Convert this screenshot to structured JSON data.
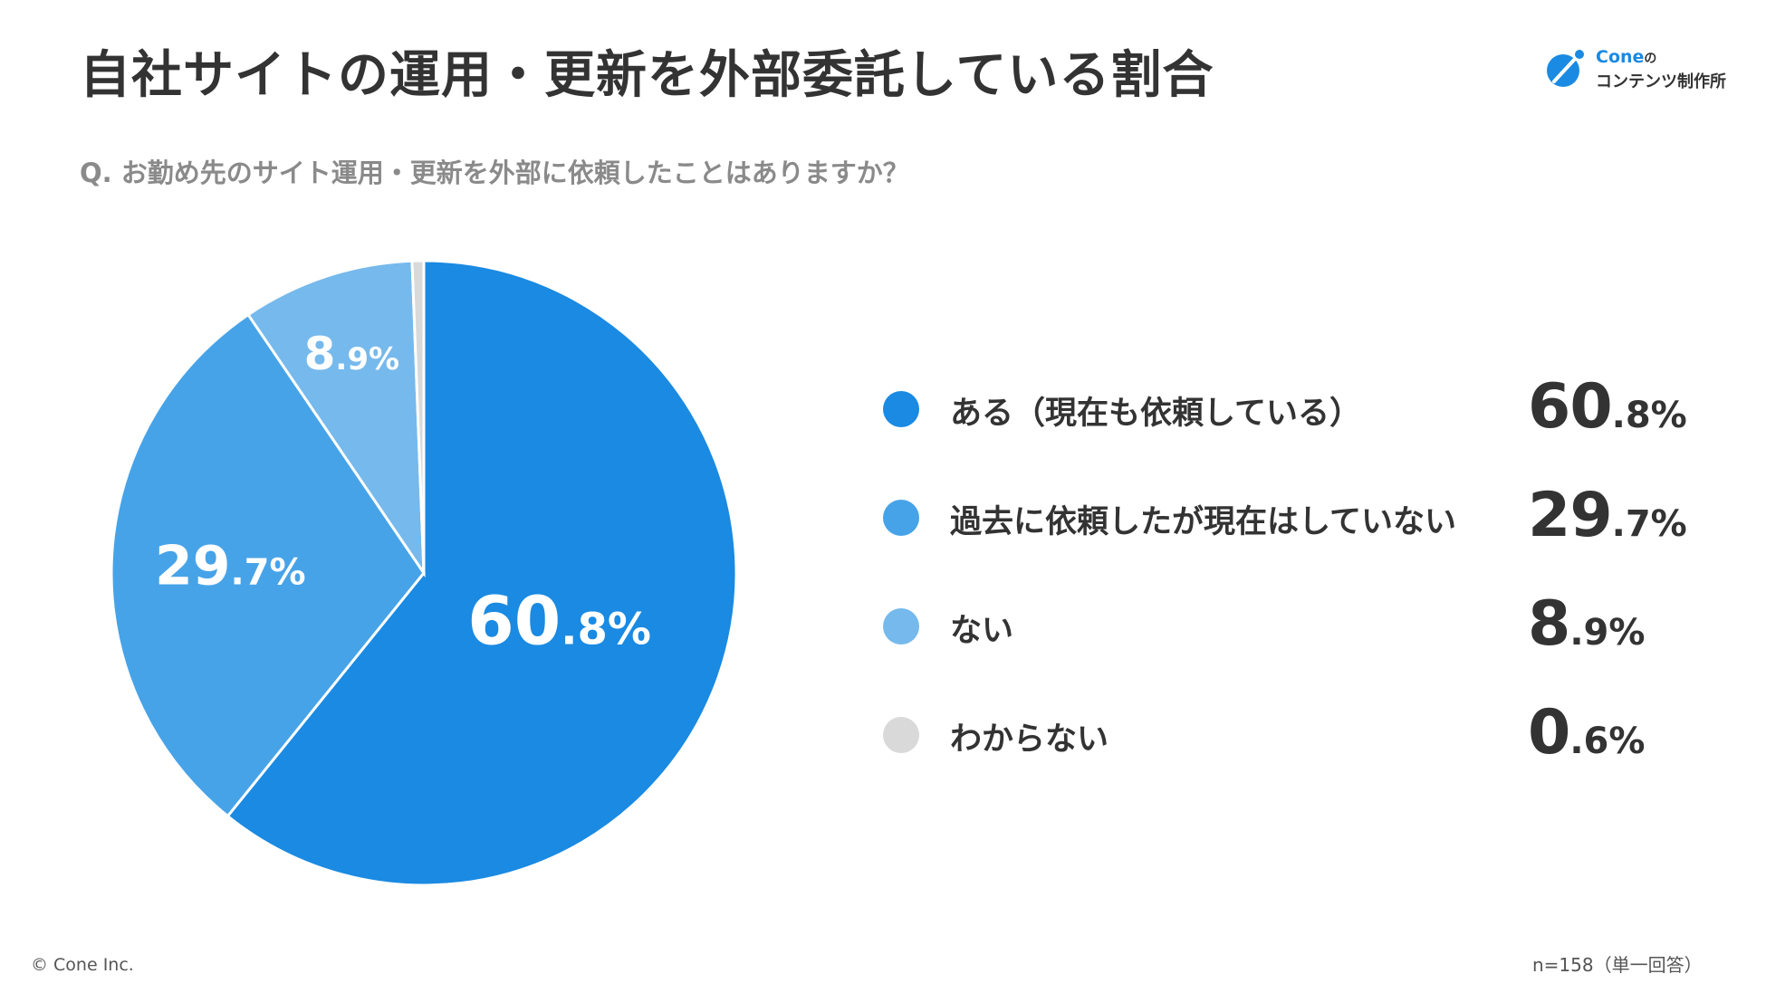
{
  "title": "自社サイトの運用・更新を外部委託している割合",
  "question": "Q. お勤め先のサイト運用・更新を外部に依頼したことはありますか？",
  "logo": {
    "brand": "Cone",
    "particle": "の",
    "subtitle": "コンテンツ制作所",
    "accent": "#1a8ae2"
  },
  "footer": {
    "copyright": "© Cone Inc.",
    "sample_note": "n=158（単一回答）"
  },
  "chart_data": {
    "type": "pie",
    "title": "",
    "categories": [
      "ある（現在も依頼している）",
      "過去に依頼したが現在はしていない",
      "ない",
      "わからない"
    ],
    "values": [
      60.8,
      29.7,
      8.9,
      0.6
    ],
    "colors": [
      "#1a8ae2",
      "#47a3e8",
      "#76b9ec",
      "#d9d9d9"
    ],
    "unit": "%",
    "slice_labels_shown": [
      "60.8%",
      "29.7%",
      "8.9%"
    ],
    "legend_position": "right",
    "legend": [
      {
        "label": "ある（現在も依頼している）",
        "int": "60",
        "dec": ".8%",
        "color": "#1a8ae2"
      },
      {
        "label": "過去に依頼したが現在はしていない",
        "int": "29",
        "dec": ".7%",
        "color": "#47a3e8"
      },
      {
        "label": "ない",
        "int": "8",
        "dec": ".9%",
        "color": "#76b9ec"
      },
      {
        "label": "わからない",
        "int": "0",
        "dec": ".6%",
        "color": "#d9d9d9"
      }
    ]
  }
}
